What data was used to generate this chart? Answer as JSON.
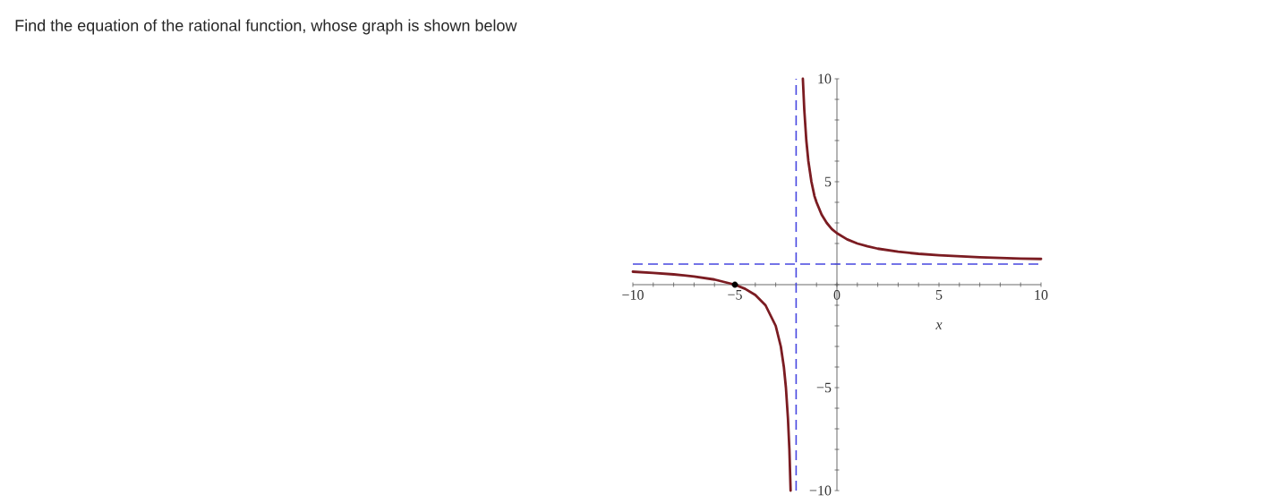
{
  "chart_data": {
    "type": "line",
    "title": "Find the equation of the rational function, whose graph is shown below",
    "xlabel": "x",
    "xlim": [
      -10,
      10
    ],
    "ylim": [
      -10,
      10
    ],
    "xticks": [
      {
        "value": -10,
        "label": "−10"
      },
      {
        "value": -9,
        "label": null
      },
      {
        "value": -8,
        "label": null
      },
      {
        "value": -7,
        "label": null
      },
      {
        "value": -6,
        "label": null
      },
      {
        "value": -5,
        "label": "−5"
      },
      {
        "value": -4,
        "label": null
      },
      {
        "value": -3,
        "label": null
      },
      {
        "value": -2,
        "label": null
      },
      {
        "value": -1,
        "label": null
      },
      0,
      {
        "value": 1,
        "label": null
      },
      {
        "value": 2,
        "label": null
      },
      {
        "value": 3,
        "label": null
      },
      {
        "value": 4,
        "label": null
      },
      5,
      {
        "value": 6,
        "label": null
      },
      {
        "value": 7,
        "label": null
      },
      {
        "value": 8,
        "label": null
      },
      {
        "value": 9,
        "label": null
      },
      10
    ],
    "yticks": [
      {
        "value": -10,
        "label": "−10"
      },
      {
        "value": -9,
        "label": null
      },
      {
        "value": -8,
        "label": null
      },
      {
        "value": -7,
        "label": null
      },
      {
        "value": -6,
        "label": null
      },
      {
        "value": -5,
        "label": "−5"
      },
      {
        "value": -4,
        "label": null
      },
      {
        "value": -3,
        "label": null
      },
      {
        "value": -2,
        "label": null
      },
      {
        "value": -1,
        "label": null
      },
      {
        "value": 0,
        "label": null
      },
      {
        "value": 1,
        "label": null
      },
      {
        "value": 2,
        "label": null
      },
      {
        "value": 3,
        "label": null
      },
      {
        "value": 4,
        "label": null
      },
      5,
      {
        "value": 6,
        "label": null
      },
      {
        "value": 7,
        "label": null
      },
      {
        "value": 8,
        "label": null
      },
      {
        "value": 9,
        "label": null
      },
      10
    ],
    "series": [
      {
        "color": "#7b1c22",
        "marker": "none",
        "x": [
          -10,
          -9,
          -8,
          -7,
          -6,
          -5,
          -4.5,
          -4,
          -3.5,
          -3,
          -2.75,
          -2.6,
          -2.5,
          -2.4,
          -2.33,
          -2.27,
          -2,
          -1.67,
          -1.6,
          -1.5,
          -1.4,
          -1.25,
          -1.1,
          -1,
          -0.75,
          -0.5,
          -0.25,
          0,
          0.5,
          1,
          1.5,
          2,
          3,
          4,
          5,
          6,
          7,
          8,
          9,
          10
        ],
        "values": [
          0.63,
          0.57,
          0.5,
          0.4,
          0.25,
          0,
          -0.2,
          -0.5,
          -1,
          -2,
          -3,
          -4,
          -5,
          -6.5,
          -8,
          -10,
          null,
          10,
          8.5,
          7,
          6,
          5,
          4.3,
          4,
          3.4,
          3,
          2.7,
          2.5,
          2.2,
          2,
          1.86,
          1.75,
          1.6,
          1.5,
          1.43,
          1.38,
          1.33,
          1.3,
          1.27,
          1.25
        ]
      },
      {
        "type": "scatter",
        "color": "#000000",
        "marker": "circle",
        "x": [
          -5
        ],
        "values": [
          0
        ]
      }
    ],
    "ref_lines": [
      {
        "axis": "x",
        "value": -2,
        "color": "#4747e0",
        "line_style": "dashed"
      },
      {
        "axis": "y",
        "value": 1,
        "color": "#4747e0",
        "line_style": "dashed"
      }
    ]
  }
}
